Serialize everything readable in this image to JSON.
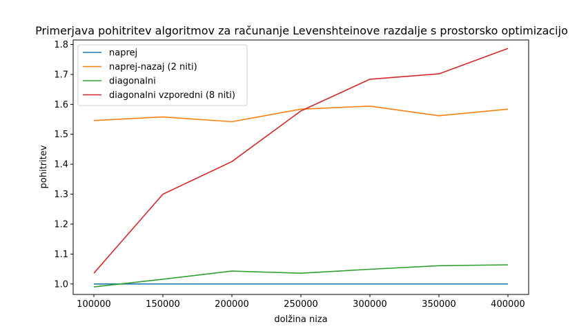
{
  "chart_data": {
    "type": "line",
    "title": "Primerjava pohitritev algoritmov za računanje Levenshteinove razdalje s prostorsko optimizacijo",
    "xlabel": "dolžina niza",
    "ylabel": "pohitritev",
    "x": [
      100000,
      150000,
      200000,
      250000,
      300000,
      350000,
      400000
    ],
    "xlim": [
      85000,
      415000
    ],
    "ylim": [
      0.965,
      1.815
    ],
    "xticks": [
      "100000",
      "150000",
      "200000",
      "250000",
      "300000",
      "350000",
      "400000"
    ],
    "yticks": [
      "1.0",
      "1.1",
      "1.2",
      "1.3",
      "1.4",
      "1.5",
      "1.6",
      "1.7",
      "1.8"
    ],
    "grid": false,
    "legend_position": "top-left",
    "series": [
      {
        "name": "naprej",
        "color": "#1f77b4",
        "values": [
          1.0,
          1.0,
          1.0,
          1.0,
          1.0,
          1.0,
          1.0
        ]
      },
      {
        "name": "naprej-nazaj (2 niti)",
        "color": "#ff7f0e",
        "values": [
          1.546,
          1.558,
          1.542,
          1.584,
          1.594,
          1.562,
          1.584
        ]
      },
      {
        "name": "diagonalni",
        "color": "#2ca02c",
        "values": [
          0.99,
          1.016,
          1.043,
          1.036,
          1.049,
          1.061,
          1.064
        ]
      },
      {
        "name": "diagonalni vzporedni (8 niti)",
        "color": "#d62728",
        "values": [
          1.036,
          1.3,
          1.409,
          1.578,
          1.684,
          1.702,
          1.787
        ]
      }
    ]
  }
}
